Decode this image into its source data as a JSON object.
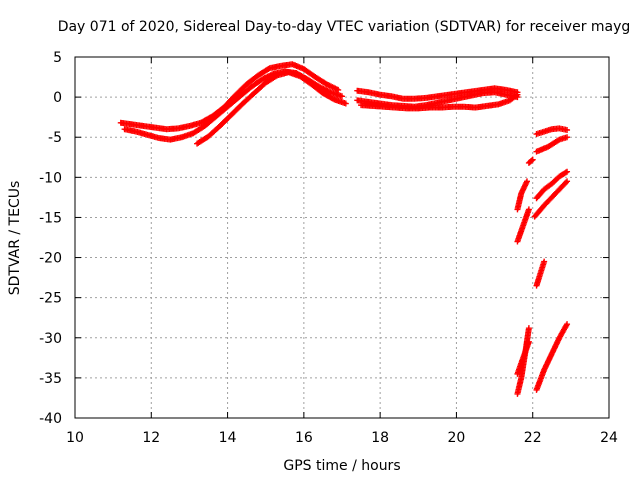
{
  "chart_data": {
    "type": "scatter",
    "title": "Day 071 of 2020, Sidereal Day-to-day VTEC variation (SDTVAR) for receiver mayg",
    "xlabel": "GPS time / hours",
    "ylabel": "SDTVAR / TECUs",
    "xlim": [
      10,
      24
    ],
    "ylim": [
      -40,
      5
    ],
    "grid": true,
    "x_ticks": [
      10,
      12,
      14,
      16,
      18,
      20,
      22,
      24
    ],
    "y_ticks": [
      5,
      0,
      -5,
      -10,
      -15,
      -20,
      -25,
      -30,
      -35,
      -40
    ],
    "x_tick_labels": [
      "10",
      "12",
      "14",
      "16",
      "18",
      "20",
      "22",
      "24"
    ],
    "y_tick_labels": [
      "5",
      "0",
      "-5",
      "-10",
      "-15",
      "-20",
      "-25",
      "-30",
      "-35",
      "-40"
    ],
    "marker": "+",
    "marker_color": "#ff0000",
    "series": [
      {
        "name": "track-1",
        "points": [
          [
            11.2,
            -3.2
          ],
          [
            11.5,
            -3.4
          ],
          [
            11.8,
            -3.6
          ],
          [
            12.1,
            -3.8
          ],
          [
            12.4,
            -4.0
          ],
          [
            12.7,
            -3.9
          ],
          [
            13.0,
            -3.6
          ],
          [
            13.3,
            -3.2
          ],
          [
            13.6,
            -2.4
          ],
          [
            13.9,
            -1.3
          ],
          [
            14.2,
            0.2
          ],
          [
            14.5,
            1.6
          ],
          [
            14.8,
            2.7
          ],
          [
            15.1,
            3.6
          ],
          [
            15.4,
            3.9
          ],
          [
            15.7,
            4.1
          ],
          [
            16.0,
            3.5
          ],
          [
            16.3,
            2.5
          ],
          [
            16.6,
            1.6
          ],
          [
            16.9,
            0.9
          ]
        ]
      },
      {
        "name": "track-2",
        "points": [
          [
            11.3,
            -4.0
          ],
          [
            11.6,
            -4.3
          ],
          [
            11.9,
            -4.7
          ],
          [
            12.2,
            -5.1
          ],
          [
            12.5,
            -5.3
          ],
          [
            12.8,
            -5.0
          ],
          [
            13.1,
            -4.5
          ],
          [
            13.4,
            -3.6
          ],
          [
            13.7,
            -2.4
          ],
          [
            14.0,
            -1.2
          ],
          [
            14.3,
            0.0
          ],
          [
            14.6,
            1.2
          ],
          [
            14.9,
            2.2
          ],
          [
            15.2,
            2.9
          ],
          [
            15.5,
            3.2
          ],
          [
            15.8,
            3.0
          ],
          [
            16.1,
            2.2
          ],
          [
            16.4,
            1.3
          ],
          [
            16.7,
            0.6
          ],
          [
            17.0,
            0.1
          ]
        ]
      },
      {
        "name": "track-3",
        "points": [
          [
            13.2,
            -5.8
          ],
          [
            13.5,
            -4.9
          ],
          [
            13.8,
            -3.6
          ],
          [
            14.1,
            -2.2
          ],
          [
            14.4,
            -0.8
          ],
          [
            14.7,
            0.5
          ],
          [
            15.0,
            1.8
          ],
          [
            15.3,
            2.7
          ],
          [
            15.6,
            3.1
          ],
          [
            15.9,
            2.6
          ],
          [
            16.2,
            1.6
          ],
          [
            16.5,
            0.5
          ],
          [
            16.8,
            -0.3
          ],
          [
            17.1,
            -0.8
          ]
        ]
      },
      {
        "name": "track-4",
        "points": [
          [
            17.4,
            0.8
          ],
          [
            17.7,
            0.6
          ],
          [
            18.0,
            0.3
          ],
          [
            18.3,
            0.1
          ],
          [
            18.6,
            -0.2
          ],
          [
            18.9,
            -0.2
          ],
          [
            19.2,
            -0.1
          ],
          [
            19.5,
            0.1
          ],
          [
            19.8,
            0.3
          ],
          [
            20.1,
            0.5
          ],
          [
            20.4,
            0.7
          ],
          [
            20.7,
            0.9
          ],
          [
            21.0,
            1.1
          ],
          [
            21.3,
            0.9
          ],
          [
            21.6,
            0.6
          ]
        ]
      },
      {
        "name": "track-5",
        "points": [
          [
            17.4,
            -0.4
          ],
          [
            17.7,
            -0.6
          ],
          [
            18.0,
            -0.8
          ],
          [
            18.3,
            -1.0
          ],
          [
            18.6,
            -1.1
          ],
          [
            18.9,
            -1.2
          ],
          [
            19.2,
            -1.0
          ],
          [
            19.5,
            -0.7
          ],
          [
            19.8,
            -0.4
          ],
          [
            20.1,
            -0.1
          ],
          [
            20.4,
            0.2
          ],
          [
            20.7,
            0.5
          ],
          [
            21.0,
            0.6
          ],
          [
            21.3,
            0.3
          ],
          [
            21.6,
            0.0
          ]
        ]
      },
      {
        "name": "track-6",
        "points": [
          [
            17.5,
            -1.0
          ],
          [
            17.8,
            -1.1
          ],
          [
            18.1,
            -1.2
          ],
          [
            18.4,
            -1.3
          ],
          [
            18.7,
            -1.4
          ],
          [
            19.0,
            -1.4
          ],
          [
            19.3,
            -1.3
          ],
          [
            19.6,
            -1.3
          ],
          [
            19.9,
            -1.2
          ],
          [
            20.2,
            -1.2
          ],
          [
            20.5,
            -1.3
          ],
          [
            20.8,
            -1.1
          ],
          [
            21.1,
            -0.9
          ],
          [
            21.4,
            -0.4
          ],
          [
            21.6,
            0.3
          ]
        ]
      },
      {
        "name": "track-7",
        "points": [
          [
            22.1,
            -4.6
          ],
          [
            22.3,
            -4.3
          ],
          [
            22.5,
            -4.0
          ],
          [
            22.7,
            -3.9
          ],
          [
            22.9,
            -4.1
          ]
        ]
      },
      {
        "name": "track-8",
        "points": [
          [
            22.1,
            -6.8
          ],
          [
            22.4,
            -6.2
          ],
          [
            22.7,
            -5.3
          ],
          [
            22.9,
            -5.0
          ]
        ]
      },
      {
        "name": "track-9",
        "points": [
          [
            21.9,
            -8.2
          ],
          [
            22.0,
            -7.8
          ]
        ]
      },
      {
        "name": "track-10",
        "points": [
          [
            21.6,
            -14.0
          ],
          [
            21.7,
            -12.0
          ],
          [
            21.85,
            -10.5
          ]
        ]
      },
      {
        "name": "track-11",
        "points": [
          [
            21.6,
            -18.0
          ],
          [
            21.75,
            -16.0
          ],
          [
            21.9,
            -14.0
          ]
        ]
      },
      {
        "name": "track-12",
        "points": [
          [
            22.1,
            -12.6
          ],
          [
            22.3,
            -11.5
          ],
          [
            22.5,
            -10.8
          ],
          [
            22.7,
            -9.9
          ],
          [
            22.9,
            -9.3
          ]
        ]
      },
      {
        "name": "track-13",
        "points": [
          [
            22.05,
            -14.9
          ],
          [
            22.3,
            -13.5
          ],
          [
            22.5,
            -12.5
          ],
          [
            22.7,
            -11.5
          ],
          [
            22.9,
            -10.5
          ]
        ]
      },
      {
        "name": "track-14",
        "points": [
          [
            22.1,
            -23.5
          ],
          [
            22.2,
            -22.0
          ],
          [
            22.3,
            -20.5
          ]
        ]
      },
      {
        "name": "track-15",
        "points": [
          [
            21.6,
            -37.0
          ],
          [
            21.7,
            -35.0
          ],
          [
            21.8,
            -32.0
          ],
          [
            21.9,
            -28.8
          ]
        ]
      },
      {
        "name": "track-16",
        "points": [
          [
            21.6,
            -34.5
          ],
          [
            21.75,
            -32.5
          ],
          [
            21.9,
            -30.5
          ]
        ]
      },
      {
        "name": "track-17",
        "points": [
          [
            22.1,
            -36.5
          ],
          [
            22.3,
            -34.0
          ],
          [
            22.5,
            -32.0
          ],
          [
            22.7,
            -30.0
          ],
          [
            22.9,
            -28.3
          ]
        ]
      }
    ]
  }
}
